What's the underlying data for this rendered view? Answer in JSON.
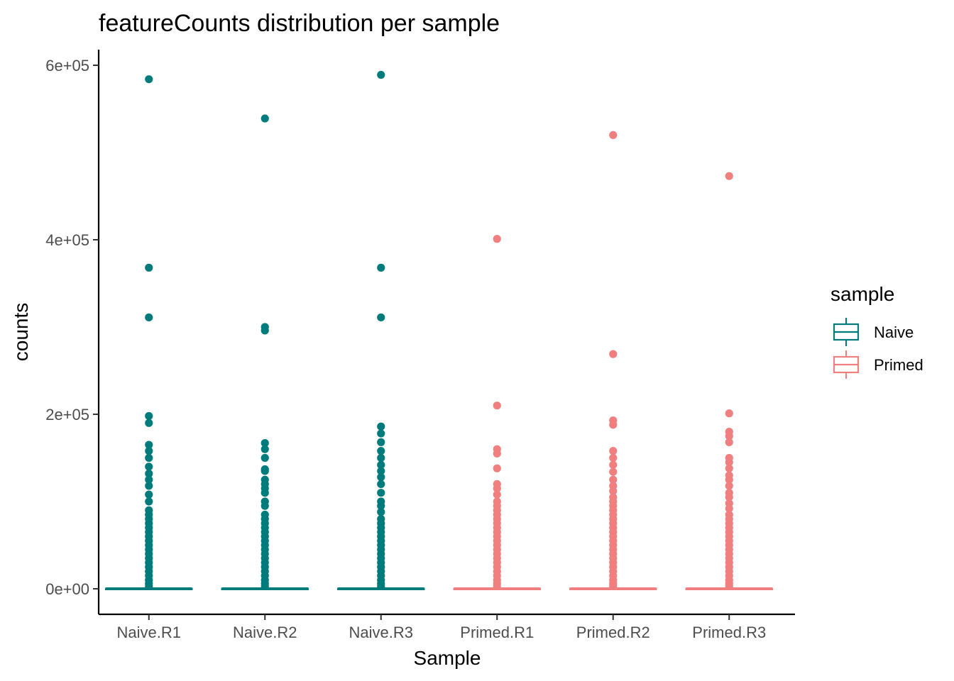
{
  "chart_data": {
    "type": "box",
    "title": "featureCounts distribution per sample",
    "xlabel": "Sample",
    "ylabel": "counts",
    "categories": [
      "Naive.R1",
      "Naive.R2",
      "Naive.R3",
      "Primed.R1",
      "Primed.R2",
      "Primed.R3"
    ],
    "group_of_category": [
      "Naive",
      "Naive",
      "Naive",
      "Primed",
      "Primed",
      "Primed"
    ],
    "ylim": [
      -30000,
      620000
    ],
    "yticks": [
      {
        "value": 0,
        "label": "0e+00"
      },
      {
        "value": 200000,
        "label": "2e+05"
      },
      {
        "value": 400000,
        "label": "4e+05"
      },
      {
        "value": 600000,
        "label": "6e+05"
      }
    ],
    "boxes": [
      {
        "category": "Naive.R1",
        "median": 0,
        "q1": 0,
        "q3": 200,
        "outliers": [
          584000,
          368000,
          311000,
          198000,
          190000,
          165000,
          158000,
          150000,
          140000,
          132000,
          125000,
          118000,
          108000,
          100000,
          90000,
          85000,
          80000,
          75000,
          70000,
          65000,
          60000,
          55000,
          50000,
          45000,
          40000,
          35000,
          30000,
          25000,
          20000,
          15000,
          10000,
          6000,
          3000
        ]
      },
      {
        "category": "Naive.R2",
        "median": 0,
        "q1": 0,
        "q3": 200,
        "outliers": [
          539000,
          300000,
          296000,
          167000,
          160000,
          150000,
          137000,
          135000,
          125000,
          120000,
          115000,
          110000,
          100000,
          95000,
          85000,
          80000,
          75000,
          70000,
          65000,
          60000,
          55000,
          50000,
          45000,
          40000,
          35000,
          30000,
          25000,
          20000,
          15000,
          10000,
          6000,
          3000
        ]
      },
      {
        "category": "Naive.R3",
        "median": 0,
        "q1": 0,
        "q3": 200,
        "outliers": [
          589000,
          368000,
          311000,
          186000,
          178000,
          168000,
          158000,
          150000,
          142000,
          135000,
          128000,
          120000,
          110000,
          100000,
          95000,
          88000,
          80000,
          75000,
          70000,
          65000,
          60000,
          55000,
          50000,
          45000,
          40000,
          35000,
          30000,
          25000,
          20000,
          15000,
          10000,
          6000,
          3000
        ]
      },
      {
        "category": "Primed.R1",
        "median": 0,
        "q1": 0,
        "q3": 200,
        "outliers": [
          401000,
          210000,
          160000,
          155000,
          138000,
          120000,
          115000,
          108000,
          100000,
          95000,
          90000,
          85000,
          80000,
          75000,
          70000,
          65000,
          60000,
          55000,
          50000,
          45000,
          40000,
          35000,
          30000,
          25000,
          20000,
          15000,
          10000,
          6000,
          3000
        ]
      },
      {
        "category": "Primed.R2",
        "median": 0,
        "q1": 0,
        "q3": 200,
        "outliers": [
          520000,
          269000,
          193000,
          188000,
          158000,
          150000,
          142000,
          134000,
          125000,
          118000,
          112000,
          105000,
          100000,
          95000,
          90000,
          85000,
          80000,
          75000,
          70000,
          65000,
          60000,
          55000,
          50000,
          45000,
          40000,
          35000,
          30000,
          25000,
          20000,
          15000,
          10000,
          6000,
          3000
        ]
      },
      {
        "category": "Primed.R3",
        "median": 0,
        "q1": 0,
        "q3": 200,
        "outliers": [
          473000,
          201000,
          180000,
          175000,
          168000,
          150000,
          145000,
          138000,
          130000,
          125000,
          118000,
          110000,
          105000,
          98000,
          92000,
          85000,
          80000,
          75000,
          70000,
          65000,
          60000,
          55000,
          50000,
          45000,
          40000,
          35000,
          30000,
          25000,
          20000,
          15000,
          10000,
          6000,
          3000
        ]
      }
    ],
    "legend": {
      "title": "sample",
      "position": "right",
      "entries": [
        {
          "name": "Naive",
          "color": "#007b7b"
        },
        {
          "name": "Primed",
          "color": "#f08080"
        }
      ]
    },
    "grid": false
  }
}
